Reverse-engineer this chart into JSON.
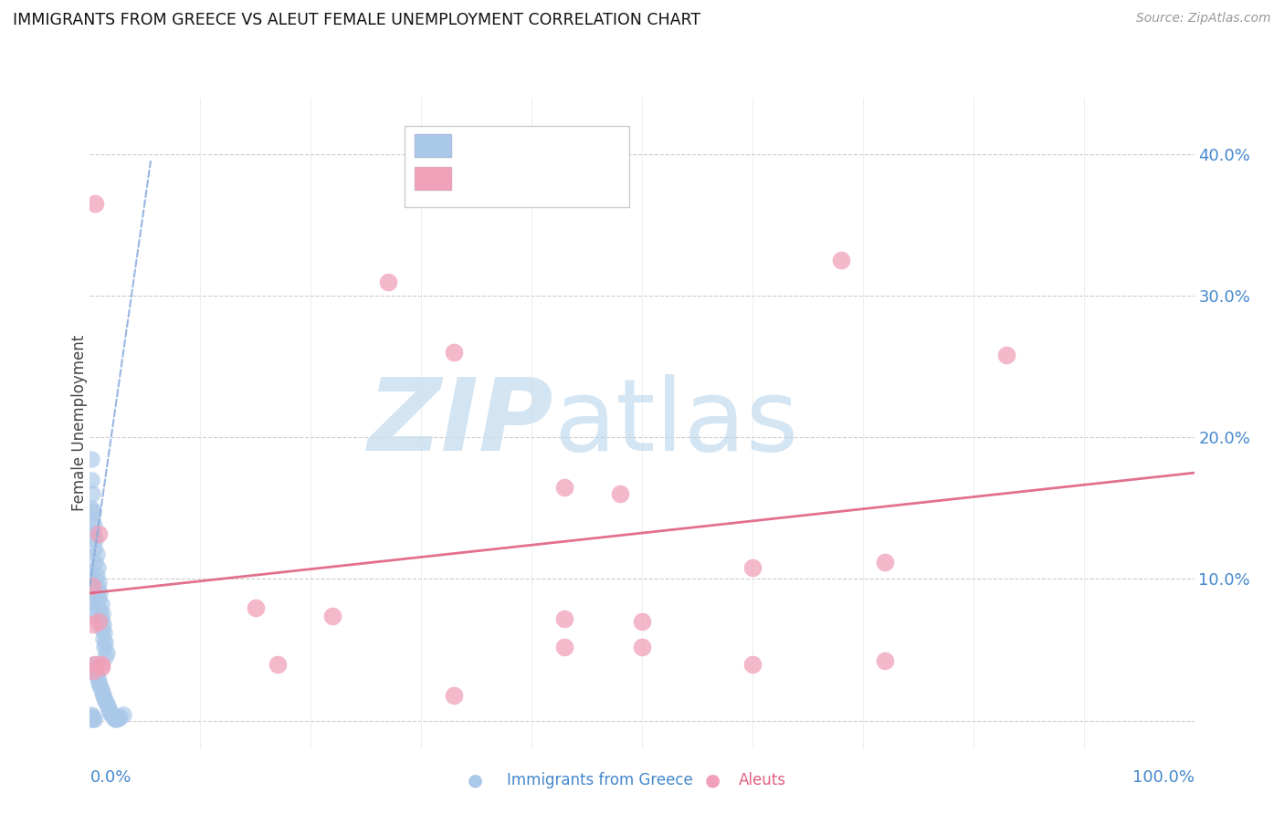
{
  "title": "IMMIGRANTS FROM GREECE VS ALEUT FEMALE UNEMPLOYMENT CORRELATION CHART",
  "source": "Source: ZipAtlas.com",
  "ylabel": "Female Unemployment",
  "yticks": [
    0.0,
    0.1,
    0.2,
    0.3,
    0.4
  ],
  "ytick_labels_right": [
    "",
    "10.0%",
    "20.0%",
    "30.0%",
    "40.0%"
  ],
  "xlim": [
    0.0,
    1.0
  ],
  "ylim": [
    -0.02,
    0.44
  ],
  "blue_color": "#aac8e8",
  "pink_color": "#f0a0b8",
  "blue_line_color": "#6699cc",
  "pink_line_color": "#e06080",
  "grid_color": "#cccccc",
  "blue_scatter": [
    [
      0.001,
      0.185
    ],
    [
      0.001,
      0.17
    ],
    [
      0.002,
      0.16
    ],
    [
      0.001,
      0.15
    ],
    [
      0.003,
      0.148
    ],
    [
      0.002,
      0.142
    ],
    [
      0.004,
      0.138
    ],
    [
      0.003,
      0.132
    ],
    [
      0.005,
      0.128
    ],
    [
      0.004,
      0.122
    ],
    [
      0.006,
      0.118
    ],
    [
      0.005,
      0.112
    ],
    [
      0.007,
      0.108
    ],
    [
      0.006,
      0.102
    ],
    [
      0.008,
      0.098
    ],
    [
      0.007,
      0.094
    ],
    [
      0.009,
      0.09
    ],
    [
      0.008,
      0.086
    ],
    [
      0.01,
      0.082
    ],
    [
      0.009,
      0.078
    ],
    [
      0.011,
      0.076
    ],
    [
      0.01,
      0.072
    ],
    [
      0.012,
      0.068
    ],
    [
      0.011,
      0.065
    ],
    [
      0.013,
      0.062
    ],
    [
      0.012,
      0.058
    ],
    [
      0.014,
      0.055
    ],
    [
      0.013,
      0.052
    ],
    [
      0.015,
      0.048
    ],
    [
      0.014,
      0.045
    ],
    [
      0.003,
      0.04
    ],
    [
      0.004,
      0.038
    ],
    [
      0.005,
      0.035
    ],
    [
      0.006,
      0.032
    ],
    [
      0.007,
      0.03
    ],
    [
      0.008,
      0.027
    ],
    [
      0.009,
      0.025
    ],
    [
      0.01,
      0.022
    ],
    [
      0.011,
      0.02
    ],
    [
      0.012,
      0.018
    ],
    [
      0.013,
      0.016
    ],
    [
      0.014,
      0.014
    ],
    [
      0.015,
      0.012
    ],
    [
      0.016,
      0.01
    ],
    [
      0.017,
      0.008
    ],
    [
      0.018,
      0.006
    ],
    [
      0.019,
      0.005
    ],
    [
      0.02,
      0.004
    ],
    [
      0.021,
      0.003
    ],
    [
      0.022,
      0.002
    ],
    [
      0.001,
      0.004
    ],
    [
      0.002,
      0.003
    ],
    [
      0.001,
      0.002
    ],
    [
      0.002,
      0.001
    ],
    [
      0.003,
      0.001
    ],
    [
      0.004,
      0.001
    ],
    [
      0.023,
      0.001
    ],
    [
      0.024,
      0.001
    ],
    [
      0.025,
      0.002
    ],
    [
      0.026,
      0.002
    ],
    [
      0.027,
      0.003
    ],
    [
      0.03,
      0.004
    ],
    [
      0.001,
      0.095
    ],
    [
      0.001,
      0.1
    ],
    [
      0.001,
      0.105
    ],
    [
      0.001,
      0.092
    ],
    [
      0.001,
      0.088
    ],
    [
      0.001,
      0.085
    ],
    [
      0.001,
      0.08
    ],
    [
      0.001,
      0.075
    ]
  ],
  "pink_scatter": [
    [
      0.005,
      0.365
    ],
    [
      0.27,
      0.31
    ],
    [
      0.68,
      0.325
    ],
    [
      0.33,
      0.26
    ],
    [
      0.83,
      0.258
    ],
    [
      0.43,
      0.165
    ],
    [
      0.48,
      0.16
    ],
    [
      0.008,
      0.132
    ],
    [
      0.6,
      0.108
    ],
    [
      0.72,
      0.112
    ],
    [
      0.15,
      0.08
    ],
    [
      0.22,
      0.074
    ],
    [
      0.43,
      0.072
    ],
    [
      0.5,
      0.07
    ],
    [
      0.6,
      0.04
    ],
    [
      0.72,
      0.042
    ],
    [
      0.17,
      0.04
    ],
    [
      0.33,
      0.018
    ],
    [
      0.43,
      0.052
    ],
    [
      0.5,
      0.052
    ],
    [
      0.003,
      0.068
    ],
    [
      0.008,
      0.07
    ],
    [
      0.005,
      0.04
    ],
    [
      0.01,
      0.04
    ],
    [
      0.003,
      0.035
    ],
    [
      0.01,
      0.038
    ],
    [
      0.002,
      0.095
    ]
  ],
  "blue_trend_x": [
    0.0,
    0.055
  ],
  "blue_trend_y": [
    0.095,
    0.395
  ],
  "pink_trend_x": [
    0.0,
    1.0
  ],
  "pink_trend_y": [
    0.09,
    0.175
  ]
}
